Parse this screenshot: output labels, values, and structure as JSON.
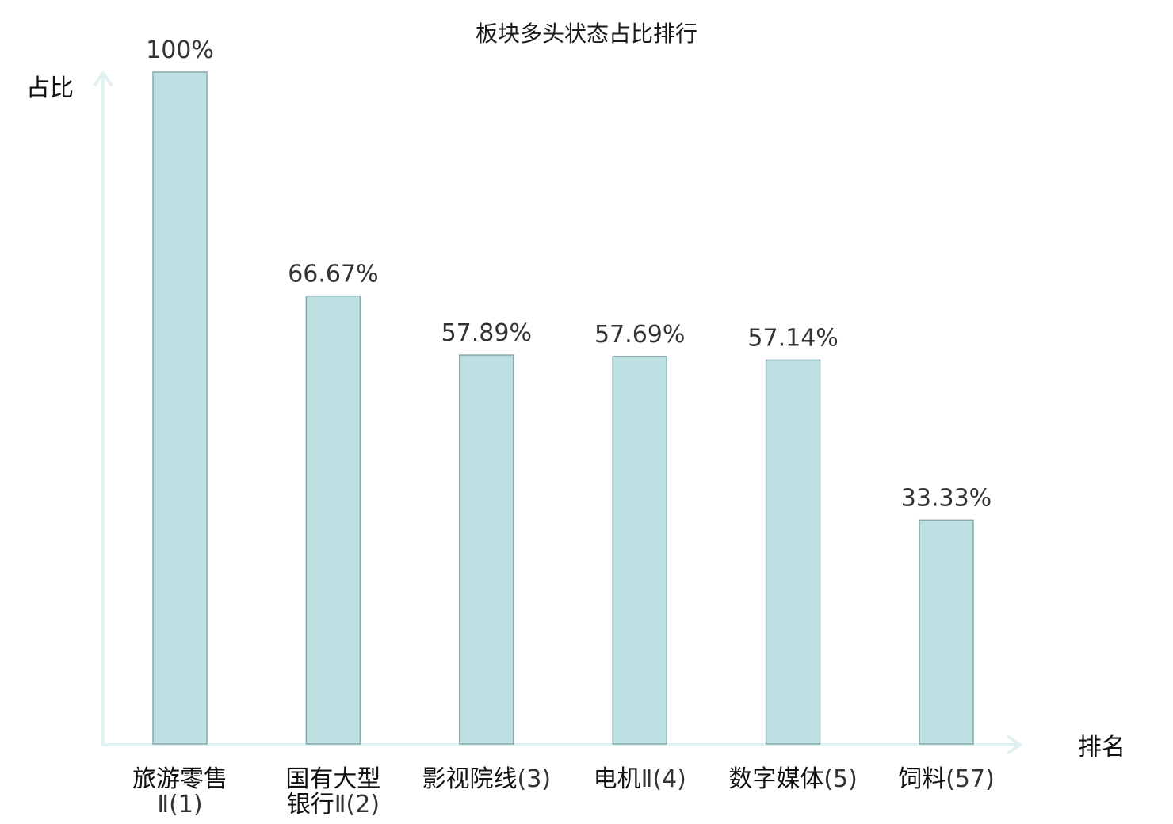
{
  "chart_data": {
    "type": "bar",
    "title": "板块多头状态占比排行",
    "ylabel": "占比",
    "xlabel": "排名",
    "ylim": [
      0,
      100
    ],
    "grid": false,
    "legend": "none",
    "categories": [
      "旅游零售Ⅱ(1)",
      "国有大型银行Ⅱ(2)",
      "影视院线(3)",
      "电机Ⅱ(4)",
      "数字媒体(5)",
      "饲料(57)"
    ],
    "category_labels": [
      {
        "lines": [
          [
            {
              "text": "旅游零售",
              "role": "name"
            }
          ],
          [
            {
              "text": "Ⅱ(1)",
              "role": "rank"
            }
          ]
        ]
      },
      {
        "lines": [
          [
            {
              "text": "国有大型",
              "role": "name"
            }
          ],
          [
            {
              "text": "银行",
              "role": "name"
            },
            {
              "text": "Ⅱ(2)",
              "role": "rank"
            }
          ]
        ]
      },
      {
        "lines": [
          [
            {
              "text": "影视院线",
              "role": "name"
            },
            {
              "text": "(3)",
              "role": "rank"
            }
          ]
        ]
      },
      {
        "lines": [
          [
            {
              "text": "电机",
              "role": "name"
            },
            {
              "text": "Ⅱ(4)",
              "role": "rank"
            }
          ]
        ]
      },
      {
        "lines": [
          [
            {
              "text": "数字媒体",
              "role": "name"
            },
            {
              "text": "(5)",
              "role": "rank"
            }
          ]
        ]
      },
      {
        "lines": [
          [
            {
              "text": "饲料",
              "role": "name"
            },
            {
              "text": "(57)",
              "role": "rank"
            }
          ]
        ]
      }
    ],
    "values": [
      100,
      66.67,
      57.89,
      57.69,
      57.14,
      33.33
    ],
    "value_labels": [
      "100%",
      "66.67%",
      "57.89%",
      "57.69%",
      "57.14%",
      "33.33%"
    ],
    "highlight_index": 5,
    "colors": {
      "bar_fill": "#bde0e3",
      "bar_stroke": "#86a8ab",
      "axis": "#dff1f0",
      "highlight_text": "#e02020",
      "value_text": "#333333",
      "label_text": "#111111"
    }
  }
}
